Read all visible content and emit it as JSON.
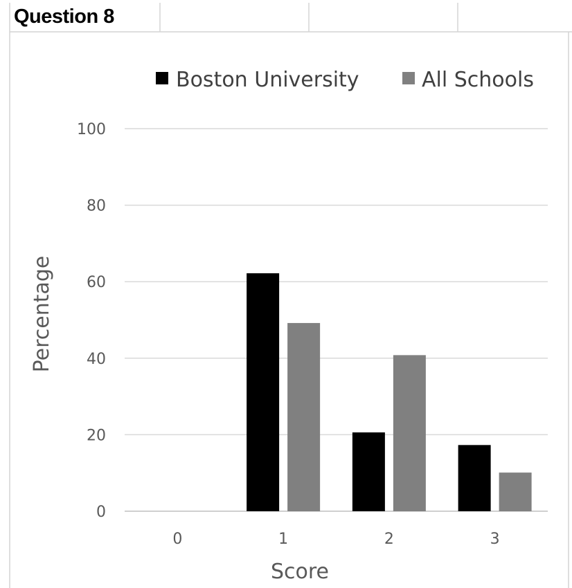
{
  "header": {
    "title": "Question 8"
  },
  "chart_data": {
    "type": "bar",
    "title": "",
    "xlabel": "Score",
    "ylabel": "Percentage",
    "categories": [
      "0",
      "1",
      "2",
      "3"
    ],
    "series": [
      {
        "name": "Boston University",
        "color": "#000000",
        "values": [
          0,
          62.2,
          20.6,
          17.3
        ]
      },
      {
        "name": "All Schools",
        "color": "#808080",
        "values": [
          0,
          49.2,
          40.8,
          10.1
        ]
      }
    ],
    "ylim": [
      0,
      100
    ],
    "yticks": [
      0,
      20,
      40,
      60,
      80,
      100
    ],
    "grid": true,
    "legend_position": "top"
  }
}
